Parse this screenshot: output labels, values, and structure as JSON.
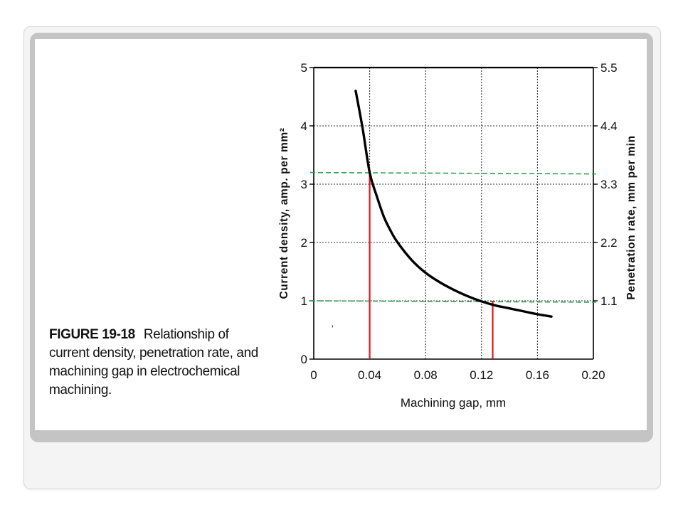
{
  "caption": {
    "figure_label": "FIGURE 19-18",
    "text": "Relationship of current density, penetration rate, and machining gap in electrochemical machining."
  },
  "chart_data": {
    "type": "line",
    "xlabel": "Machining gap, mm",
    "ylabel": "Current density, amp. per mm²",
    "y2label": "Penetration rate, mm per min",
    "x_ticks": [
      "0",
      "0.04",
      "0.08",
      "0.12",
      "0.16",
      "0.20"
    ],
    "y_ticks": [
      "0",
      "1",
      "2",
      "3",
      "4",
      "5"
    ],
    "y2_ticks": [
      "1.1",
      "2.2",
      "3.3",
      "4.4",
      "5.5"
    ],
    "xlim": [
      0,
      0.2
    ],
    "ylim": [
      0,
      5
    ],
    "y2lim": [
      0,
      5.5
    ],
    "grid": true,
    "series": [
      {
        "color": "#000000",
        "x": [
          0.03,
          0.035,
          0.04,
          0.045,
          0.05,
          0.055,
          0.06,
          0.07,
          0.08,
          0.09,
          0.1,
          0.11,
          0.12,
          0.13,
          0.14,
          0.15,
          0.16,
          0.17
        ],
        "y": [
          4.6,
          3.95,
          3.2,
          2.8,
          2.45,
          2.2,
          2.0,
          1.7,
          1.48,
          1.32,
          1.19,
          1.08,
          0.99,
          0.92,
          0.87,
          0.82,
          0.77,
          0.73
        ]
      }
    ],
    "reference_lines": [
      {
        "kind": "horizontal",
        "y": 3.2,
        "style": "dashed",
        "color": "#2ca05a"
      },
      {
        "kind": "horizontal",
        "y": 1.0,
        "style": "dashed",
        "color": "#2ca05a"
      },
      {
        "kind": "vertical",
        "x": 0.04,
        "y_to": 3.2,
        "color": "#e8151b"
      },
      {
        "kind": "vertical",
        "x": 0.128,
        "y_to": 1.0,
        "color": "#e8151b"
      }
    ],
    "stray_mark": "'"
  }
}
